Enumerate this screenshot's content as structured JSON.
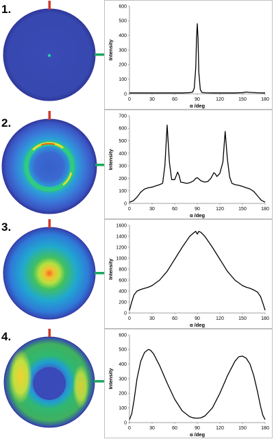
{
  "colors": {
    "disc_edge": "#3333a0",
    "marker_red": "#d23a2a",
    "marker_green": "#1aa860",
    "line": "#000000"
  },
  "panels": [
    {
      "label": "1.",
      "pattern": "uniform-blue-with-central-dot"
    },
    {
      "label": "2.",
      "pattern": "ring-with-bright-arcs"
    },
    {
      "label": "3.",
      "pattern": "central-bright-spot"
    },
    {
      "label": "4.",
      "pattern": "two-lateral-lobes"
    }
  ],
  "chart_data": [
    {
      "type": "line",
      "xlabel": "α /deg",
      "ylabel": "Intensity",
      "xlim": [
        0,
        180
      ],
      "ylim": [
        0,
        600
      ],
      "xticks": [
        0,
        30,
        60,
        90,
        120,
        150,
        180
      ],
      "yticks": [
        0,
        100,
        200,
        300,
        400,
        500,
        600
      ],
      "series": [
        {
          "x": [
            0,
            10,
            20,
            30,
            40,
            50,
            60,
            70,
            80,
            84,
            86,
            88,
            89,
            90,
            91,
            92,
            94,
            96,
            100,
            110,
            120,
            130,
            140,
            150,
            155,
            160,
            170,
            180
          ],
          "y": [
            6,
            6,
            6,
            6,
            6,
            6,
            6,
            6,
            8,
            12,
            40,
            180,
            380,
            480,
            380,
            150,
            30,
            10,
            7,
            6,
            6,
            6,
            6,
            8,
            12,
            10,
            7,
            6
          ]
        }
      ]
    },
    {
      "type": "line",
      "xlabel": "α /deg",
      "ylabel": "Intensity",
      "xlim": [
        0,
        180
      ],
      "ylim": [
        0,
        700
      ],
      "xticks": [
        0,
        30,
        60,
        90,
        120,
        150,
        180
      ],
      "yticks": [
        0,
        100,
        200,
        300,
        400,
        500,
        600,
        700
      ],
      "series": [
        {
          "x": [
            0,
            5,
            10,
            15,
            20,
            25,
            30,
            35,
            40,
            44,
            47,
            50,
            53,
            56,
            60,
            64,
            66,
            68,
            72,
            76,
            80,
            85,
            88,
            90,
            92,
            95,
            100,
            104,
            108,
            112,
            114,
            116,
            120,
            124,
            127,
            130,
            133,
            136,
            140,
            145,
            150,
            155,
            160,
            165,
            170,
            175,
            180
          ],
          "y": [
            10,
            20,
            50,
            90,
            115,
            125,
            130,
            140,
            150,
            160,
            300,
            625,
            330,
            190,
            190,
            250,
            220,
            170,
            165,
            160,
            165,
            180,
            200,
            205,
            195,
            180,
            170,
            175,
            200,
            245,
            235,
            215,
            240,
            330,
            575,
            350,
            210,
            160,
            150,
            145,
            135,
            125,
            115,
            95,
            60,
            25,
            10
          ]
        }
      ]
    },
    {
      "type": "line",
      "xlabel": "α /deg",
      "ylabel": "Intensity",
      "xlim": [
        0,
        180
      ],
      "ylim": [
        0,
        1600
      ],
      "xticks": [
        0,
        30,
        60,
        90,
        120,
        150,
        180
      ],
      "yticks": [
        0,
        200,
        400,
        600,
        800,
        1000,
        1200,
        1400,
        1600
      ],
      "series": [
        {
          "x": [
            0,
            3,
            6,
            10,
            15,
            20,
            25,
            30,
            40,
            50,
            60,
            70,
            80,
            85,
            88,
            90,
            92,
            95,
            100,
            110,
            120,
            130,
            140,
            150,
            155,
            160,
            165,
            170,
            174,
            177,
            180
          ],
          "y": [
            50,
            200,
            330,
            400,
            430,
            450,
            470,
            500,
            600,
            760,
            980,
            1200,
            1400,
            1460,
            1490,
            1440,
            1490,
            1470,
            1400,
            1200,
            980,
            760,
            600,
            500,
            470,
            450,
            420,
            380,
            300,
            180,
            50
          ]
        }
      ]
    },
    {
      "type": "line",
      "xlabel": "α /deg",
      "ylabel": "Intensity",
      "xlim": [
        0,
        180
      ],
      "ylim": [
        0,
        600
      ],
      "xticks": [
        0,
        30,
        60,
        90,
        120,
        150,
        180
      ],
      "yticks": [
        0,
        100,
        200,
        300,
        400,
        500,
        600
      ],
      "series": [
        {
          "x": [
            0,
            3,
            6,
            10,
            15,
            20,
            25,
            28,
            32,
            40,
            50,
            60,
            70,
            80,
            85,
            90,
            95,
            100,
            110,
            120,
            130,
            140,
            145,
            150,
            155,
            160,
            165,
            170,
            174,
            177,
            180
          ],
          "y": [
            20,
            60,
            150,
            300,
            420,
            480,
            500,
            495,
            470,
            390,
            270,
            160,
            80,
            40,
            32,
            30,
            33,
            45,
            100,
            200,
            320,
            420,
            450,
            455,
            440,
            400,
            320,
            210,
            110,
            50,
            20
          ]
        }
      ]
    }
  ]
}
